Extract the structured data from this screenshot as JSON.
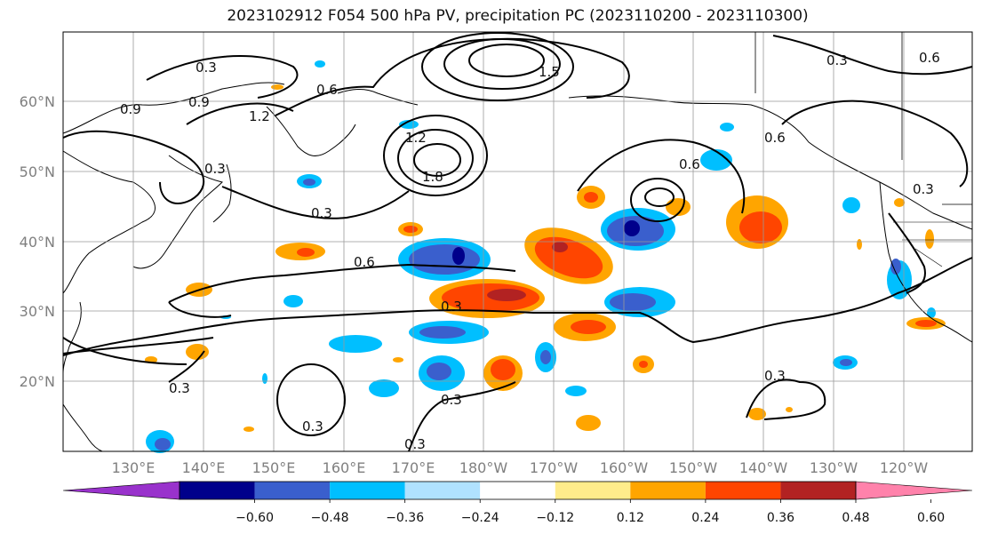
{
  "title": "2023102912 F054 500 hPa PV, precipitation PC (2023110200 - 2023110300)",
  "lat_labels": [
    "60°N",
    "50°N",
    "40°N",
    "30°N",
    "20°N"
  ],
  "lon_labels": [
    "130°E",
    "140°E",
    "150°E",
    "160°E",
    "170°E",
    "180°W",
    "170°W",
    "160°W",
    "150°W",
    "140°W",
    "130°W",
    "120°W"
  ],
  "contour_labels": [
    "0.3",
    "0.9",
    "1.2",
    "0.9",
    "0.6",
    "0.3",
    "0.3",
    "0.6",
    "0.3",
    "0.3",
    "0.3",
    "0.3",
    "0.6",
    "0.6",
    "0.3",
    "0.6",
    "0.3",
    "0.3",
    "0.3",
    "1.2",
    "1.8",
    "1.5"
  ],
  "colorbar": {
    "ticks": [
      "−0.60",
      "−0.48",
      "−0.36",
      "−0.24",
      "−0.12",
      "0.12",
      "0.24",
      "0.36",
      "0.48",
      "0.60"
    ],
    "colors": [
      "#9932cc",
      "#00008b",
      "#3a5fcd",
      "#00bfff",
      "#b0e2ff",
      "#ffffff",
      "#ffec8b",
      "#ffa500",
      "#ff4500",
      "#b22222",
      "#ff82ab"
    ]
  },
  "colors": {
    "neg_strong": "#00008b",
    "neg_mid": "#3a5fcd",
    "neg_light": "#00bfff",
    "neg_faint": "#b0e2ff",
    "pos_faint": "#ffec8b",
    "pos_light": "#ffa500",
    "pos_mid": "#ff4500",
    "pos_strong": "#b22222"
  }
}
